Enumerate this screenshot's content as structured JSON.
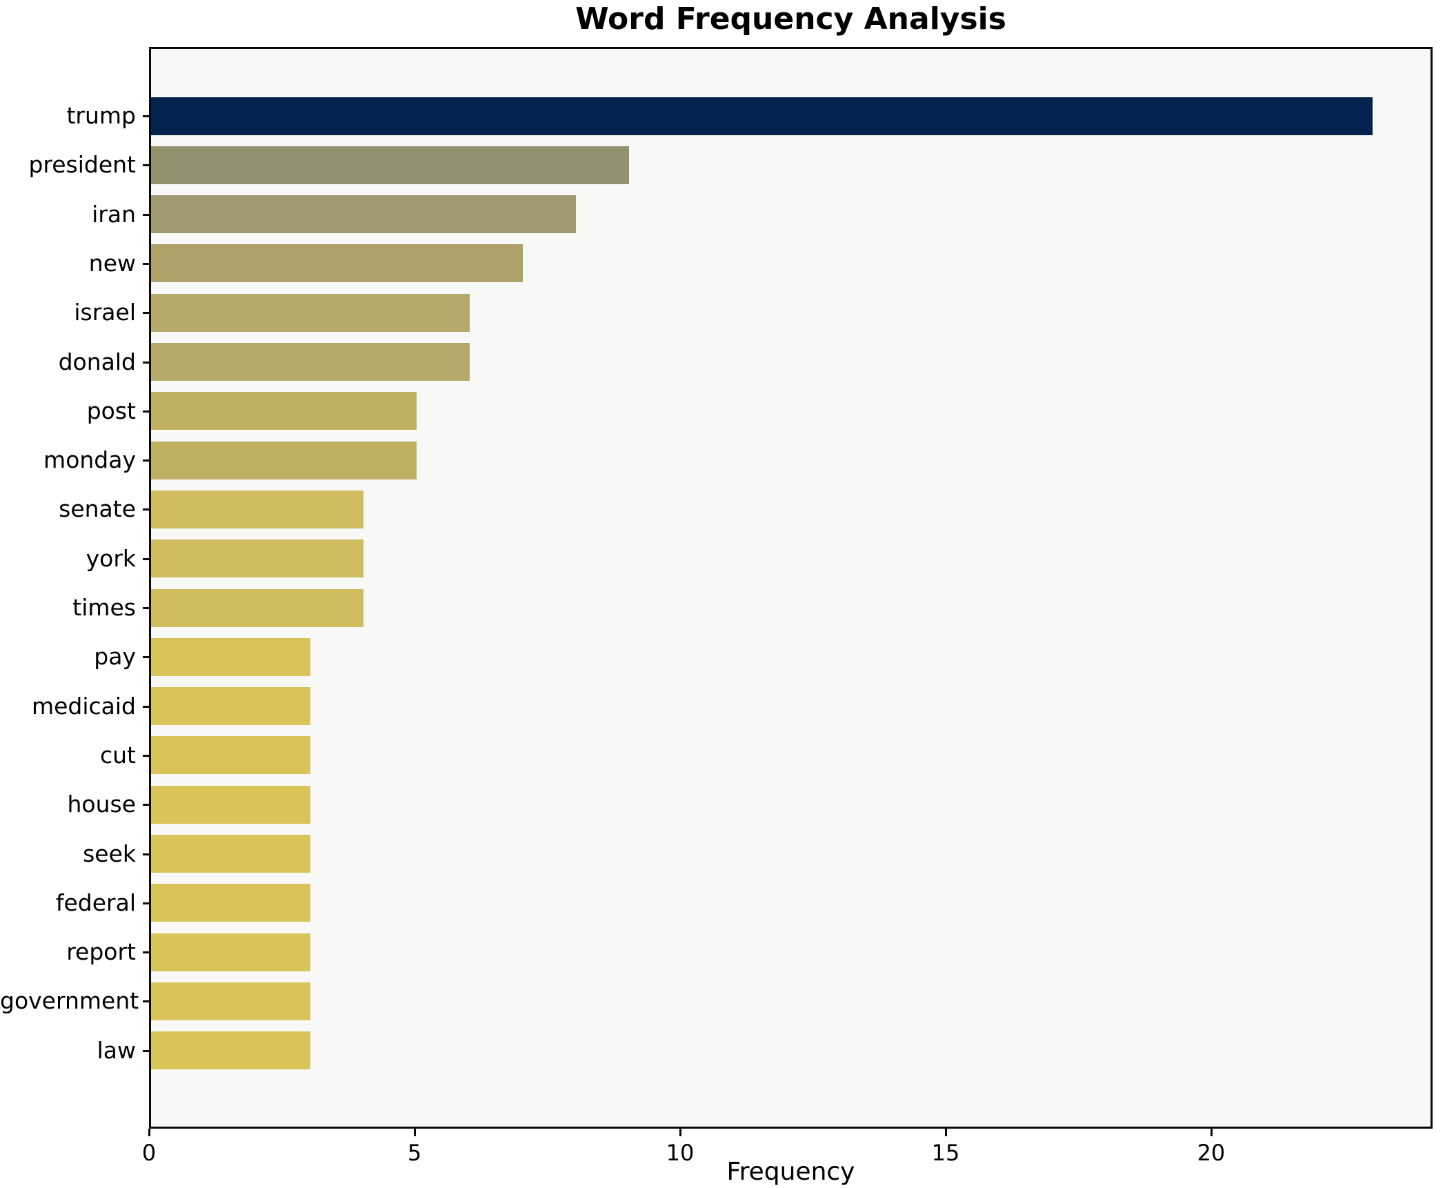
{
  "figure": {
    "title": "Word Frequency Analysis",
    "xlabel": "Frequency"
  },
  "chart_data": {
    "type": "bar",
    "orientation": "horizontal",
    "title": "Word Frequency Analysis",
    "xlabel": "Frequency",
    "ylabel": "",
    "categories": [
      "trump",
      "president",
      "iran",
      "new",
      "israel",
      "donald",
      "post",
      "monday",
      "senate",
      "york",
      "times",
      "pay",
      "medicaid",
      "cut",
      "house",
      "seek",
      "federal",
      "report",
      "government",
      "law"
    ],
    "values": [
      23,
      9,
      8,
      7,
      6,
      6,
      5,
      5,
      4,
      4,
      4,
      3,
      3,
      3,
      3,
      3,
      3,
      3,
      3,
      3
    ],
    "bar_colors": [
      "#02234d",
      "#94916f",
      "#a19970",
      "#aca26a",
      "#b3aa6b",
      "#b3aa6b",
      "#bfb162",
      "#bfb162",
      "#cfbd5f",
      "#cfbd5f",
      "#cfbd5f",
      "#d9c45a",
      "#d9c45a",
      "#d9c45a",
      "#d9c45a",
      "#d9c45a",
      "#d9c45a",
      "#d9c45a",
      "#d9c45a",
      "#d9c45a"
    ],
    "xlim": [
      0,
      24.17
    ],
    "xticks": [
      0,
      5,
      10,
      15,
      20
    ],
    "xtick_labels": [
      "0",
      "5",
      "10",
      "15",
      "20"
    ],
    "grid": false,
    "legend": null,
    "plot_background": "#f8f8f6",
    "figure_background": "#ffffff",
    "frame_color": "#0a0a0a",
    "text_color": "#000000"
  }
}
